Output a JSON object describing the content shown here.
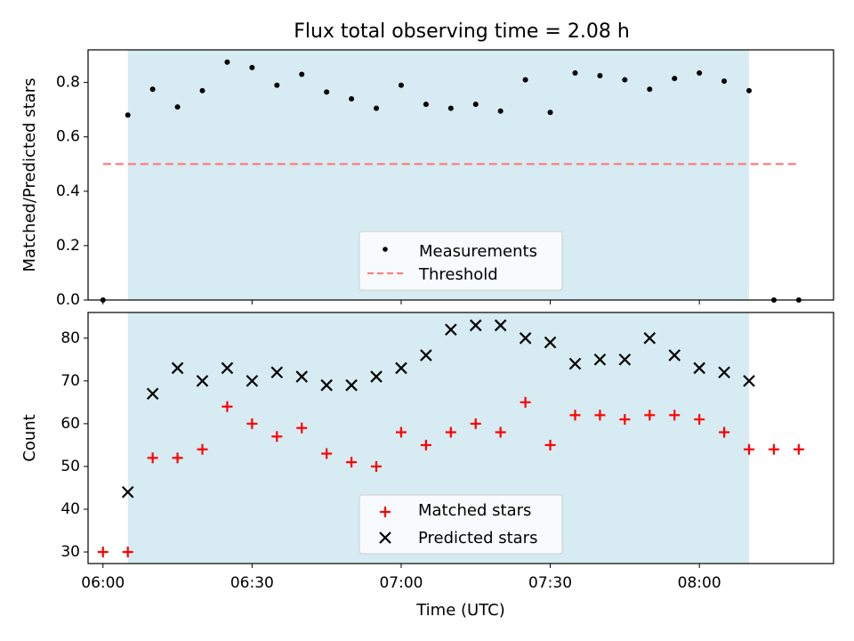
{
  "figure": {
    "title": "Flux total observing time = 2.08 h",
    "shared_xlabel": "Time (UTC)"
  },
  "colors": {
    "span_fill": "#add8e6",
    "measurement_marker": "#000000",
    "threshold_line": "#ff7f7f",
    "matched_marker": "#ff0000",
    "predicted_marker": "#000000"
  },
  "chart_data": [
    {
      "type": "scatter",
      "title": "Flux total observing time = 2.08 h",
      "xlabel": "",
      "ylabel": "Matched/Predicted stars",
      "xlim": [
        "05:57",
        "08:27"
      ],
      "ylim": [
        0.0,
        0.92
      ],
      "x_ticks": [
        "06:00",
        "06:30",
        "07:00",
        "07:30",
        "08:00"
      ],
      "y_ticks": [
        0.0,
        0.2,
        0.4,
        0.6,
        0.8
      ],
      "y_tick_labels": [
        "0.0",
        "0.2",
        "0.4",
        "0.6",
        "0.8"
      ],
      "shaded_span": [
        "06:05",
        "08:10"
      ],
      "grid": false,
      "legend_position": "lower center",
      "series": [
        {
          "name": "Measurements",
          "marker": "dot",
          "x": [
            "06:00",
            "06:05",
            "06:10",
            "06:15",
            "06:20",
            "06:25",
            "06:30",
            "06:35",
            "06:40",
            "06:45",
            "06:50",
            "06:55",
            "07:00",
            "07:05",
            "07:10",
            "07:15",
            "07:20",
            "07:25",
            "07:30",
            "07:35",
            "07:40",
            "07:45",
            "07:50",
            "07:55",
            "08:00",
            "08:05",
            "08:10",
            "08:15",
            "08:20"
          ],
          "y": [
            0.0,
            0.68,
            0.775,
            0.71,
            0.77,
            0.875,
            0.855,
            0.79,
            0.83,
            0.765,
            0.74,
            0.705,
            0.79,
            0.72,
            0.705,
            0.72,
            0.695,
            0.81,
            0.69,
            0.835,
            0.825,
            0.81,
            0.775,
            0.815,
            0.835,
            0.805,
            0.77,
            0.0,
            0.0
          ]
        },
        {
          "name": "Threshold",
          "style": "dashed",
          "x": [
            "06:00",
            "08:20"
          ],
          "y": [
            0.5,
            0.5
          ]
        }
      ]
    },
    {
      "type": "scatter",
      "title": "",
      "xlabel": "Time (UTC)",
      "ylabel": "Count",
      "xlim": [
        "05:57",
        "08:27"
      ],
      "ylim": [
        27.3,
        86
      ],
      "x_ticks": [
        "06:00",
        "06:30",
        "07:00",
        "07:30",
        "08:00"
      ],
      "y_ticks": [
        30,
        40,
        50,
        60,
        70,
        80
      ],
      "shaded_span": [
        "06:05",
        "08:10"
      ],
      "grid": false,
      "legend_position": "lower center",
      "series": [
        {
          "name": "Matched stars",
          "marker": "plus",
          "x": [
            "06:00",
            "06:05",
            "06:10",
            "06:15",
            "06:20",
            "06:25",
            "06:30",
            "06:35",
            "06:40",
            "06:45",
            "06:50",
            "06:55",
            "07:00",
            "07:05",
            "07:10",
            "07:15",
            "07:20",
            "07:25",
            "07:30",
            "07:35",
            "07:40",
            "07:45",
            "07:50",
            "07:55",
            "08:00",
            "08:05",
            "08:10",
            "08:15",
            "08:20"
          ],
          "y": [
            30,
            30,
            52,
            52,
            54,
            64,
            60,
            57,
            59,
            53,
            51,
            50,
            58,
            55,
            58,
            60,
            58,
            65,
            55,
            62,
            62,
            61,
            62,
            62,
            61,
            58,
            54,
            54,
            54
          ]
        },
        {
          "name": "Predicted stars",
          "marker": "x",
          "x": [
            "06:05",
            "06:10",
            "06:15",
            "06:20",
            "06:25",
            "06:30",
            "06:35",
            "06:40",
            "06:45",
            "06:50",
            "06:55",
            "07:00",
            "07:05",
            "07:10",
            "07:15",
            "07:20",
            "07:25",
            "07:30",
            "07:35",
            "07:40",
            "07:45",
            "07:50",
            "07:55",
            "08:00",
            "08:05",
            "08:10"
          ],
          "y": [
            44,
            67,
            73,
            70,
            73,
            70,
            72,
            71,
            69,
            69,
            71,
            73,
            76,
            82,
            83,
            83,
            80,
            79,
            74,
            75,
            75,
            80,
            76,
            73,
            72,
            70
          ]
        }
      ]
    }
  ]
}
